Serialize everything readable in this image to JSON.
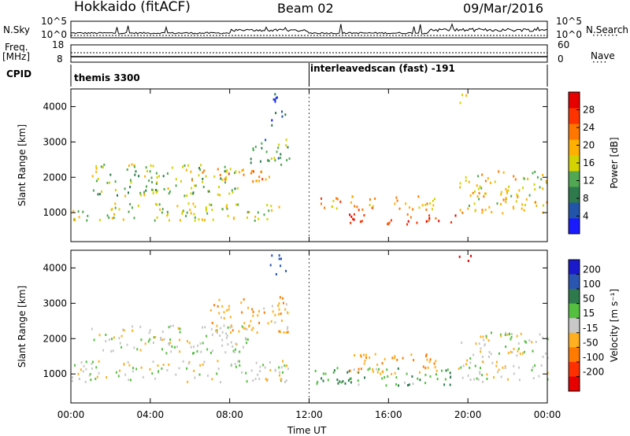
{
  "header": {
    "station": "Hokkaido (fitACF)",
    "beam": "Beam 02",
    "date": "09/Mar/2016"
  },
  "side_labels": {
    "nsky": "N.Sky",
    "nsearch": "N.Search",
    "nsearch_dots": "·······",
    "freq_line1": "Freq.",
    "freq_line2": "[MHz]",
    "nave": "Nave",
    "nave_dots": "····",
    "cpid": "CPID"
  },
  "noise_axis": {
    "left_top": "10^5",
    "left_bottom": "10^0",
    "right_top": "10^5",
    "right_bottom": "10^0"
  },
  "freq_axis": {
    "left_top": "18",
    "left_bottom": "8",
    "right_top": "60",
    "right_bottom": "0"
  },
  "cpid": {
    "first": "themis 3300",
    "second": "interleavedscan (fast) -191"
  },
  "chart_data": [
    {
      "type": "heatmap",
      "panel": "power",
      "ylabel": "Slant Range [km]",
      "xlabel": "Time UT",
      "ylim": [
        180,
        4500
      ],
      "y_ticks": [
        1000,
        2000,
        3000,
        4000
      ],
      "x_ticks": [
        "00:00",
        "04:00",
        "08:00",
        "12:00",
        "16:00",
        "20:00",
        "00:00"
      ],
      "colorbar": {
        "label": "Power [dB]",
        "ticks": [
          4,
          8,
          12,
          16,
          20,
          24,
          28
        ],
        "range": [
          0,
          32
        ],
        "colors": [
          "#1a1aff",
          "#2255aa",
          "#2e7a4c",
          "#52a852",
          "#d4d200",
          "#ffb000",
          "#ff7700",
          "#ff3300",
          "#e60000"
        ]
      },
      "regions": [
        {
          "t": [
            0,
            10.5
          ],
          "r": [
            800,
            1300
          ],
          "level": 16
        },
        {
          "t": [
            1,
            8.5
          ],
          "r": [
            1500,
            2400
          ],
          "level": 14
        },
        {
          "t": [
            6,
            10
          ],
          "r": [
            1900,
            2300
          ],
          "level": 22
        },
        {
          "t": [
            9,
            11
          ],
          "r": [
            2300,
            3100
          ],
          "level": 12
        },
        {
          "t": [
            10,
            10.8
          ],
          "r": [
            3500,
            4400
          ],
          "level": 6
        },
        {
          "t": [
            12.5,
            18.5
          ],
          "r": [
            1100,
            1500
          ],
          "level": 21
        },
        {
          "t": [
            14,
            19.5
          ],
          "r": [
            700,
            1000
          ],
          "level": 26
        },
        {
          "t": [
            19.5,
            24
          ],
          "r": [
            1000,
            2200
          ],
          "level": 18
        },
        {
          "t": [
            19.5,
            20.2
          ],
          "r": [
            4100,
            4400
          ],
          "level": 20
        }
      ]
    },
    {
      "type": "heatmap",
      "panel": "velocity",
      "ylabel": "Slant Range [km]",
      "xlabel": "Time UT",
      "ylim": [
        180,
        4500
      ],
      "y_ticks": [
        1000,
        2000,
        3000,
        4000
      ],
      "x_ticks": [
        "00:00",
        "04:00",
        "08:00",
        "12:00",
        "16:00",
        "20:00",
        "00:00"
      ],
      "colorbar": {
        "label": "Velocity [m s⁻¹]",
        "ticks": [
          200,
          100,
          50,
          15,
          -15,
          -50,
          -100,
          -200
        ],
        "colors": [
          "#1a1acc",
          "#2a55b0",
          "#2e7a4c",
          "#55c040",
          "#c8c8c8",
          "#ffb020",
          "#ff7a00",
          "#ff3000",
          "#e60000"
        ]
      },
      "regions": [
        {
          "t": [
            0,
            11
          ],
          "r": [
            800,
            1400
          ],
          "v": 0
        },
        {
          "t": [
            1,
            9
          ],
          "r": [
            1600,
            2400
          ],
          "v": 0
        },
        {
          "t": [
            7,
            11
          ],
          "r": [
            2200,
            3200
          ],
          "v": -40
        },
        {
          "t": [
            10,
            10.8
          ],
          "r": [
            3800,
            4400
          ],
          "v": 150
        },
        {
          "t": [
            12,
            19.5
          ],
          "r": [
            700,
            1200
          ],
          "v": 40
        },
        {
          "t": [
            14,
            18.5
          ],
          "r": [
            1000,
            1600
          ],
          "v": -40
        },
        {
          "t": [
            19.5,
            24
          ],
          "r": [
            800,
            2200
          ],
          "v": 0
        },
        {
          "t": [
            19.5,
            20.2
          ],
          "r": [
            4100,
            4400
          ],
          "v": -250
        }
      ]
    }
  ],
  "x_label": "Time UT"
}
